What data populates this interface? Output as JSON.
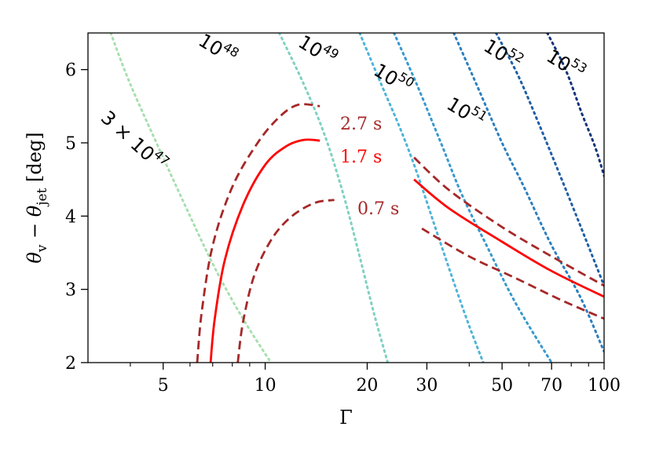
{
  "chart_data": {
    "type": "line",
    "xlabel": "Γ",
    "ylabel": "θv − θjet [deg]",
    "xscale": "log",
    "xlim": [
      3.0,
      100
    ],
    "ylim": [
      2.0,
      6.5
    ],
    "grid": false,
    "x_ticks": [
      {
        "value": 5,
        "label": "5"
      },
      {
        "value": 10,
        "label": "10"
      },
      {
        "value": 20,
        "label": "20"
      },
      {
        "value": 30,
        "label": "30"
      },
      {
        "value": 50,
        "label": "50"
      },
      {
        "value": 70,
        "label": "70"
      },
      {
        "value": 100,
        "label": "100"
      }
    ],
    "x_minor_ticks": [
      4,
      6,
      7,
      8,
      9,
      40,
      60,
      80,
      90
    ],
    "y_ticks": [
      {
        "value": 2,
        "label": "2"
      },
      {
        "value": 3,
        "label": "3"
      },
      {
        "value": 4,
        "label": "4"
      },
      {
        "value": 5,
        "label": "5"
      },
      {
        "value": 6,
        "label": "6"
      }
    ],
    "energy_contours": [
      {
        "label": "3 × 10^47",
        "label_base": "3 × 10",
        "label_exp": "47",
        "color": "#a8dfb0",
        "points": [
          [
            3.5,
            6.5
          ],
          [
            4.0,
            5.8
          ],
          [
            5.0,
            4.8
          ],
          [
            6.0,
            4.0
          ],
          [
            7.0,
            3.35
          ],
          [
            8.0,
            2.85
          ],
          [
            9.0,
            2.45
          ],
          [
            10.4,
            2.0
          ]
        ]
      },
      {
        "label": "10^48",
        "label_base": "10",
        "label_exp": "48",
        "color": "#7fd1c2",
        "points": [
          [
            11.0,
            6.5
          ],
          [
            13.0,
            5.8
          ],
          [
            15.0,
            5.1
          ],
          [
            17.0,
            4.3
          ],
          [
            19.0,
            3.45
          ],
          [
            21.0,
            2.65
          ],
          [
            23.0,
            2.0
          ]
        ]
      },
      {
        "label": "10^49",
        "label_base": "10",
        "label_exp": "49",
        "color": "#4fb4d8",
        "points": [
          [
            19.0,
            6.5
          ],
          [
            22.0,
            5.8
          ],
          [
            25.0,
            5.2
          ],
          [
            28.0,
            4.6
          ],
          [
            32.0,
            3.8
          ],
          [
            36.0,
            3.1
          ],
          [
            40.0,
            2.5
          ],
          [
            44.0,
            2.0
          ]
        ]
      },
      {
        "label": "10^50",
        "label_base": "10",
        "label_exp": "50",
        "color": "#3899d0",
        "points": [
          [
            24.0,
            6.5
          ],
          [
            28.0,
            5.8
          ],
          [
            33.0,
            5.0
          ],
          [
            38.0,
            4.3
          ],
          [
            45.0,
            3.6
          ],
          [
            55.0,
            2.8
          ],
          [
            70.0,
            2.0
          ]
        ]
      },
      {
        "label": "10^51",
        "label_base": "10",
        "label_exp": "51",
        "color": "#2c7fbf",
        "points": [
          [
            36.0,
            6.5
          ],
          [
            42.0,
            5.8
          ],
          [
            50.0,
            5.0
          ],
          [
            58.0,
            4.4
          ],
          [
            70.0,
            3.6
          ],
          [
            85.0,
            2.9
          ],
          [
            100.0,
            2.15
          ]
        ]
      },
      {
        "label": "10^52",
        "label_base": "10",
        "label_exp": "52",
        "color": "#1f5fa6",
        "points": [
          [
            48.0,
            6.5
          ],
          [
            56.0,
            5.9
          ],
          [
            65.0,
            5.2
          ],
          [
            75.0,
            4.5
          ],
          [
            88.0,
            3.7
          ],
          [
            100.0,
            3.05
          ]
        ]
      },
      {
        "label": "10^53",
        "label_base": "10",
        "label_exp": "53",
        "color": "#16357a",
        "points": [
          [
            68.0,
            6.5
          ],
          [
            77.0,
            6.0
          ],
          [
            86.0,
            5.4
          ],
          [
            94.0,
            4.95
          ],
          [
            100.0,
            4.55
          ]
        ]
      }
    ],
    "time_curves": [
      {
        "name": "2.7 s",
        "color": "#a62828",
        "dash": true,
        "label_color": "#a62828",
        "segments": [
          [
            [
              6.3,
              2.0
            ],
            [
              6.5,
              2.7
            ],
            [
              7.0,
              3.6
            ],
            [
              8.0,
              4.4
            ],
            [
              9.5,
              5.0
            ],
            [
              11.0,
              5.35
            ],
            [
              12.5,
              5.52
            ],
            [
              14.5,
              5.5
            ]
          ],
          [
            [
              27.5,
              4.8
            ],
            [
              35.0,
              4.35
            ],
            [
              50.0,
              3.85
            ],
            [
              70.0,
              3.45
            ],
            [
              100.0,
              3.05
            ]
          ]
        ]
      },
      {
        "name": "1.7 s",
        "color": "#ff0000",
        "dash": false,
        "label_color": "#ff0000",
        "segments": [
          [
            [
              6.9,
              2.0
            ],
            [
              7.1,
              2.6
            ],
            [
              7.6,
              3.4
            ],
            [
              8.6,
              4.15
            ],
            [
              10.0,
              4.7
            ],
            [
              11.5,
              4.95
            ],
            [
              13.0,
              5.04
            ],
            [
              14.5,
              5.03
            ]
          ],
          [
            [
              27.5,
              4.5
            ],
            [
              35.0,
              4.1
            ],
            [
              50.0,
              3.65
            ],
            [
              70.0,
              3.25
            ],
            [
              100.0,
              2.9
            ]
          ]
        ]
      },
      {
        "name": "0.7 s",
        "color": "#a62828",
        "dash": true,
        "label_color": "#a62828",
        "segments": [
          [
            [
              8.3,
              2.0
            ],
            [
              8.6,
              2.55
            ],
            [
              9.3,
              3.2
            ],
            [
              10.5,
              3.7
            ],
            [
              12.0,
              4.0
            ],
            [
              14.0,
              4.18
            ],
            [
              16.0,
              4.22
            ]
          ],
          [
            [
              29.0,
              3.83
            ],
            [
              40.0,
              3.45
            ],
            [
              55.0,
              3.15
            ],
            [
              75.0,
              2.85
            ],
            [
              100.0,
              2.6
            ]
          ]
        ]
      }
    ]
  }
}
